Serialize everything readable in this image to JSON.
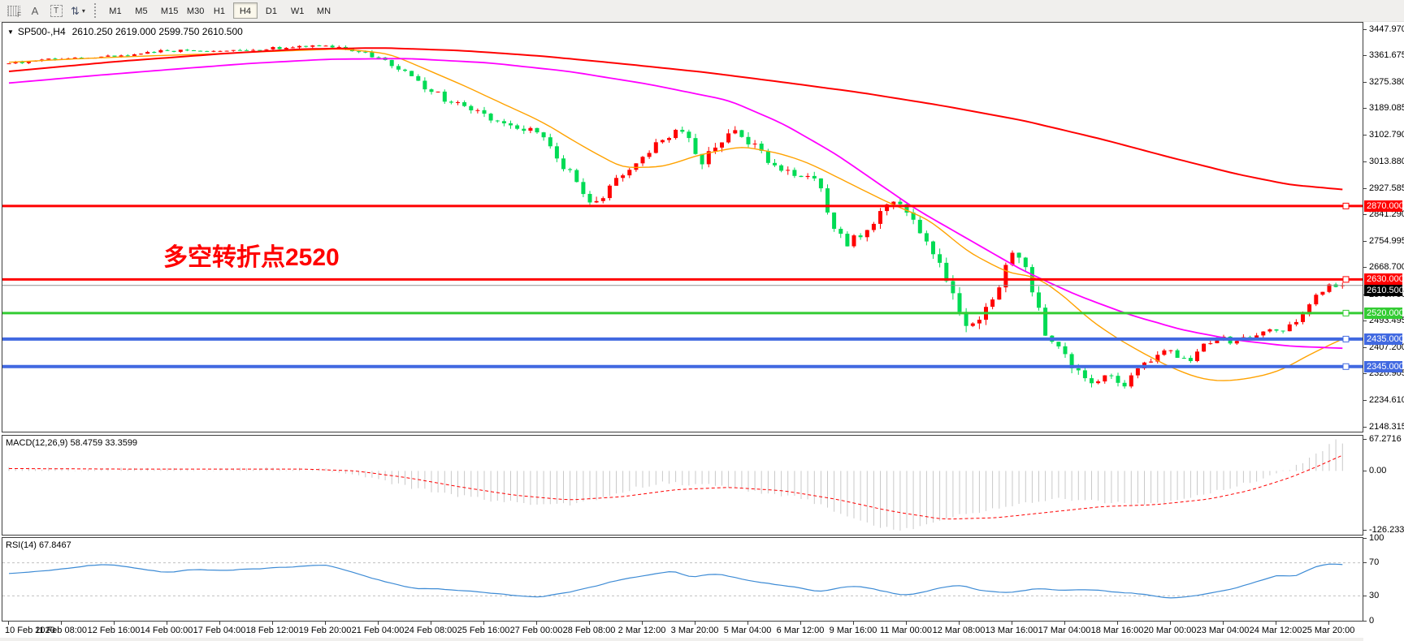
{
  "toolbar": {
    "icon_buttons": [
      {
        "name": "objects-palette",
        "glyph": "F"
      },
      {
        "name": "text-label-tool",
        "glyph": "A"
      },
      {
        "name": "text-box-tool",
        "glyph": "T"
      },
      {
        "name": "arrows-tool",
        "glyph": "⇅"
      }
    ],
    "dropdown_caret": "▾",
    "timeframes": [
      "M1",
      "M5",
      "M15",
      "M30",
      "H1",
      "H4",
      "D1",
      "W1",
      "MN"
    ],
    "active_timeframe": "H4"
  },
  "chart": {
    "title": {
      "menu_glyph": "▼",
      "symbol_period": "SP500-,H4",
      "ohlc": "2610.250 2619.000 2599.750 2610.500"
    },
    "annotation": {
      "text": "多空转折点2520",
      "color": "#ff0000"
    },
    "y_ticks": [
      "3447.970",
      "3361.675",
      "3275.380",
      "3189.085",
      "3102.790",
      "3013.880",
      "2927.585",
      "2841.290",
      "2754.995",
      "2668.700",
      "2579.790",
      "2493.495",
      "2407.200",
      "2320.905",
      "2234.610",
      "2148.315"
    ],
    "levels": [
      {
        "type": "hline",
        "price": 2870.0,
        "label": "2870.000",
        "color": "#ff0000",
        "width": 3
      },
      {
        "type": "hline",
        "price": 2630.0,
        "label": "2630.000",
        "color": "#ff0000",
        "width": 3
      },
      {
        "type": "bid",
        "price": 2610.5,
        "label": "2610.500",
        "color": "#000000",
        "line_color": "#909090",
        "width": 1
      },
      {
        "type": "hline",
        "price": 2520.0,
        "label": "2520.000",
        "color": "#33cc33",
        "width": 3
      },
      {
        "type": "hline",
        "price": 2435.0,
        "label": "2435.000",
        "color": "#4169e1",
        "width": 4
      },
      {
        "type": "hline",
        "price": 2345.0,
        "label": "2345.000",
        "color": "#4169e1",
        "width": 4
      }
    ],
    "colors": {
      "up": "#ff0000",
      "down": "#00db54",
      "ma_fast": "#ffa200",
      "ma_mid": "#ff00ff",
      "ma_slow": "#ff0000",
      "background": "#ffffff",
      "border": "#3f3f3f"
    }
  },
  "chart_data": {
    "type": "candlestick",
    "symbol": "SP500-",
    "timeframe": "H4",
    "ohlc_current": {
      "open": 2610.25,
      "high": 2619.0,
      "low": 2599.75,
      "close": 2610.5
    },
    "y_range": [
      2148.315,
      3447.97
    ],
    "n_bars": 203,
    "close_waypoints": [
      [
        0.0,
        3337,
        9
      ],
      [
        0.04,
        3352,
        8
      ],
      [
        0.079,
        3360,
        8
      ],
      [
        0.119,
        3378,
        8
      ],
      [
        0.158,
        3374,
        8
      ],
      [
        0.198,
        3386,
        8
      ],
      [
        0.238,
        3392,
        9
      ],
      [
        0.262,
        3378,
        12
      ],
      [
        0.286,
        3337,
        16
      ],
      [
        0.31,
        3262,
        24
      ],
      [
        0.33,
        3215,
        24
      ],
      [
        0.356,
        3172,
        24
      ],
      [
        0.376,
        3128,
        24
      ],
      [
        0.396,
        3116,
        24
      ],
      [
        0.42,
        2980,
        30
      ],
      [
        0.436,
        2878,
        34
      ],
      [
        0.45,
        2925,
        30
      ],
      [
        0.465,
        2988,
        28
      ],
      [
        0.478,
        3045,
        26
      ],
      [
        0.492,
        3090,
        26
      ],
      [
        0.506,
        3126,
        30
      ],
      [
        0.518,
        3010,
        34
      ],
      [
        0.532,
        3080,
        32
      ],
      [
        0.545,
        3124,
        32
      ],
      [
        0.56,
        3060,
        30
      ],
      [
        0.575,
        2998,
        30
      ],
      [
        0.59,
        2972,
        30
      ],
      [
        0.608,
        2940,
        30
      ],
      [
        0.616,
        2800,
        36
      ],
      [
        0.63,
        2748,
        36
      ],
      [
        0.644,
        2800,
        34
      ],
      [
        0.66,
        2880,
        34
      ],
      [
        0.673,
        2850,
        36
      ],
      [
        0.69,
        2741,
        38
      ],
      [
        0.702,
        2640,
        42
      ],
      [
        0.716,
        2490,
        44
      ],
      [
        0.728,
        2481,
        42
      ],
      [
        0.74,
        2590,
        42
      ],
      [
        0.752,
        2700,
        40
      ],
      [
        0.76,
        2711,
        38
      ],
      [
        0.77,
        2560,
        42
      ],
      [
        0.78,
        2430,
        40
      ],
      [
        0.79,
        2405,
        36
      ],
      [
        0.8,
        2330,
        32
      ],
      [
        0.812,
        2295,
        28
      ],
      [
        0.824,
        2310,
        26
      ],
      [
        0.836,
        2290,
        26
      ],
      [
        0.848,
        2335,
        26
      ],
      [
        0.86,
        2380,
        24
      ],
      [
        0.872,
        2400,
        24
      ],
      [
        0.884,
        2355,
        24
      ],
      [
        0.896,
        2420,
        22
      ],
      [
        0.908,
        2440,
        22
      ],
      [
        0.92,
        2425,
        20
      ],
      [
        0.932,
        2442,
        20
      ],
      [
        0.944,
        2458,
        20
      ],
      [
        0.956,
        2465,
        20
      ],
      [
        0.968,
        2490,
        20
      ],
      [
        0.978,
        2565,
        22
      ],
      [
        0.99,
        2608,
        16
      ],
      [
        1.0,
        2610.5,
        12
      ]
    ],
    "ma_series": [
      {
        "name": "ma-fast",
        "color_key": "ma_fast",
        "stroke": 1.4,
        "points": [
          [
            0,
            3340
          ],
          [
            0.05,
            3351
          ],
          [
            0.1,
            3360
          ],
          [
            0.15,
            3367
          ],
          [
            0.2,
            3376
          ],
          [
            0.25,
            3384
          ],
          [
            0.285,
            3368
          ],
          [
            0.31,
            3322
          ],
          [
            0.34,
            3266
          ],
          [
            0.37,
            3205
          ],
          [
            0.4,
            3145
          ],
          [
            0.43,
            3066
          ],
          [
            0.46,
            2995
          ],
          [
            0.49,
            2998
          ],
          [
            0.52,
            3040
          ],
          [
            0.55,
            3065
          ],
          [
            0.58,
            3040
          ],
          [
            0.6,
            3010
          ],
          [
            0.63,
            2945
          ],
          [
            0.66,
            2880
          ],
          [
            0.69,
            2825
          ],
          [
            0.72,
            2718
          ],
          [
            0.75,
            2650
          ],
          [
            0.77,
            2640
          ],
          [
            0.79,
            2580
          ],
          [
            0.81,
            2500
          ],
          [
            0.83,
            2440
          ],
          [
            0.85,
            2390
          ],
          [
            0.87,
            2345
          ],
          [
            0.89,
            2310
          ],
          [
            0.905,
            2298
          ],
          [
            0.92,
            2300
          ],
          [
            0.94,
            2315
          ],
          [
            0.955,
            2335
          ],
          [
            0.97,
            2372
          ],
          [
            0.985,
            2405
          ],
          [
            1,
            2435
          ]
        ]
      },
      {
        "name": "ma-mid",
        "color_key": "ma_mid",
        "stroke": 1.8,
        "points": [
          [
            0,
            3272
          ],
          [
            0.06,
            3295
          ],
          [
            0.12,
            3316
          ],
          [
            0.18,
            3336
          ],
          [
            0.24,
            3350
          ],
          [
            0.3,
            3352
          ],
          [
            0.36,
            3338
          ],
          [
            0.42,
            3310
          ],
          [
            0.48,
            3268
          ],
          [
            0.54,
            3215
          ],
          [
            0.58,
            3140
          ],
          [
            0.62,
            3040
          ],
          [
            0.66,
            2920
          ],
          [
            0.68,
            2860
          ],
          [
            0.72,
            2760
          ],
          [
            0.76,
            2660
          ],
          [
            0.8,
            2580
          ],
          [
            0.84,
            2515
          ],
          [
            0.88,
            2465
          ],
          [
            0.92,
            2432
          ],
          [
            0.96,
            2412
          ],
          [
            1,
            2405
          ]
        ]
      },
      {
        "name": "ma-slow",
        "color_key": "ma_slow",
        "stroke": 2,
        "points": [
          [
            0,
            3310
          ],
          [
            0.08,
            3342
          ],
          [
            0.16,
            3368
          ],
          [
            0.22,
            3383
          ],
          [
            0.28,
            3387
          ],
          [
            0.34,
            3378
          ],
          [
            0.4,
            3360
          ],
          [
            0.46,
            3335
          ],
          [
            0.52,
            3308
          ],
          [
            0.58,
            3275
          ],
          [
            0.64,
            3240
          ],
          [
            0.7,
            3198
          ],
          [
            0.76,
            3150
          ],
          [
            0.82,
            3088
          ],
          [
            0.87,
            3030
          ],
          [
            0.92,
            2975
          ],
          [
            0.96,
            2940
          ],
          [
            1,
            2924
          ]
        ]
      }
    ]
  },
  "macd": {
    "label": "MACD(12,26,9) 58.4759 33.3599",
    "values": {
      "main": 58.4759,
      "signal": 33.3599
    },
    "ticks": [
      {
        "label": "67.2716",
        "v": 67.2716
      },
      {
        "label": "0.00",
        "v": 0
      },
      {
        "label": "-126.233",
        "v": -126.233
      }
    ],
    "range": [
      -136,
      75
    ],
    "hist_color": "#c9c9c9",
    "signal_color": "#ff0000",
    "hist_points": [
      [
        0,
        6
      ],
      [
        0.05,
        4
      ],
      [
        0.1,
        3
      ],
      [
        0.15,
        3
      ],
      [
        0.2,
        5
      ],
      [
        0.24,
        2
      ],
      [
        0.27,
        -12
      ],
      [
        0.3,
        -35
      ],
      [
        0.33,
        -50
      ],
      [
        0.36,
        -62
      ],
      [
        0.39,
        -70
      ],
      [
        0.42,
        -72
      ],
      [
        0.45,
        -55
      ],
      [
        0.47,
        -35
      ],
      [
        0.49,
        -25
      ],
      [
        0.51,
        -28
      ],
      [
        0.53,
        -32
      ],
      [
        0.55,
        -40
      ],
      [
        0.57,
        -50
      ],
      [
        0.59,
        -55
      ],
      [
        0.61,
        -75
      ],
      [
        0.63,
        -100
      ],
      [
        0.655,
        -120
      ],
      [
        0.67,
        -126
      ],
      [
        0.69,
        -115
      ],
      [
        0.71,
        -95
      ],
      [
        0.73,
        -85
      ],
      [
        0.75,
        -75
      ],
      [
        0.77,
        -65
      ],
      [
        0.79,
        -60
      ],
      [
        0.81,
        -62
      ],
      [
        0.83,
        -68
      ],
      [
        0.85,
        -70
      ],
      [
        0.87,
        -65
      ],
      [
        0.89,
        -55
      ],
      [
        0.91,
        -40
      ],
      [
        0.93,
        -25
      ],
      [
        0.95,
        -8
      ],
      [
        0.965,
        10
      ],
      [
        0.98,
        35
      ],
      [
        0.99,
        55
      ],
      [
        0.995,
        67.2716
      ],
      [
        1,
        58.4759
      ]
    ],
    "signal_points": [
      [
        0,
        5
      ],
      [
        0.08,
        4
      ],
      [
        0.16,
        4
      ],
      [
        0.22,
        4
      ],
      [
        0.26,
        0
      ],
      [
        0.3,
        -15
      ],
      [
        0.34,
        -35
      ],
      [
        0.38,
        -52
      ],
      [
        0.42,
        -62
      ],
      [
        0.46,
        -55
      ],
      [
        0.5,
        -40
      ],
      [
        0.54,
        -35
      ],
      [
        0.58,
        -42
      ],
      [
        0.62,
        -60
      ],
      [
        0.66,
        -85
      ],
      [
        0.7,
        -103
      ],
      [
        0.74,
        -100
      ],
      [
        0.78,
        -88
      ],
      [
        0.82,
        -76
      ],
      [
        0.86,
        -72
      ],
      [
        0.9,
        -60
      ],
      [
        0.93,
        -42
      ],
      [
        0.96,
        -15
      ],
      [
        0.98,
        8
      ],
      [
        1,
        33.3599
      ]
    ]
  },
  "rsi": {
    "label": "RSI(14) 67.8467",
    "value": 67.8467,
    "ticks": [
      {
        "label": "100",
        "v": 100
      },
      {
        "label": "70",
        "v": 70
      },
      {
        "label": "30",
        "v": 30
      },
      {
        "label": "0",
        "v": 0
      }
    ],
    "levels": [
      70,
      30
    ],
    "color": "#3d8bd5",
    "points": [
      [
        0,
        57
      ],
      [
        0.02,
        60
      ],
      [
        0.04,
        63
      ],
      [
        0.06,
        66
      ],
      [
        0.08,
        68
      ],
      [
        0.1,
        62
      ],
      [
        0.12,
        58
      ],
      [
        0.14,
        62
      ],
      [
        0.16,
        60
      ],
      [
        0.18,
        63
      ],
      [
        0.2,
        64
      ],
      [
        0.22,
        66
      ],
      [
        0.24,
        67
      ],
      [
        0.26,
        58
      ],
      [
        0.28,
        48
      ],
      [
        0.3,
        40
      ],
      [
        0.32,
        38
      ],
      [
        0.34,
        37
      ],
      [
        0.36,
        33
      ],
      [
        0.38,
        30
      ],
      [
        0.4,
        28
      ],
      [
        0.42,
        35
      ],
      [
        0.44,
        42
      ],
      [
        0.46,
        50
      ],
      [
        0.48,
        55
      ],
      [
        0.5,
        60
      ],
      [
        0.51,
        52
      ],
      [
        0.53,
        58
      ],
      [
        0.55,
        50
      ],
      [
        0.57,
        45
      ],
      [
        0.59,
        40
      ],
      [
        0.61,
        35
      ],
      [
        0.63,
        43
      ],
      [
        0.65,
        38
      ],
      [
        0.67,
        30
      ],
      [
        0.69,
        36
      ],
      [
        0.71,
        44
      ],
      [
        0.73,
        36
      ],
      [
        0.75,
        33
      ],
      [
        0.77,
        40
      ],
      [
        0.79,
        36
      ],
      [
        0.81,
        38
      ],
      [
        0.83,
        35
      ],
      [
        0.85,
        32
      ],
      [
        0.87,
        28
      ],
      [
        0.89,
        30
      ],
      [
        0.91,
        36
      ],
      [
        0.93,
        45
      ],
      [
        0.945,
        52
      ],
      [
        0.955,
        56
      ],
      [
        0.963,
        51
      ],
      [
        0.972,
        60
      ],
      [
        0.98,
        66
      ],
      [
        0.99,
        68
      ],
      [
        1,
        67.8467
      ]
    ]
  },
  "x_axis": {
    "labels": [
      "10 Feb 2020",
      "11 Feb 08:00",
      "12 Feb 16:00",
      "14 Feb 00:00",
      "17 Feb 04:00",
      "18 Feb 12:00",
      "19 Feb 20:00",
      "21 Feb 04:00",
      "24 Feb 08:00",
      "25 Feb 16:00",
      "27 Feb 00:00",
      "28 Feb 08:00",
      "2 Mar 12:00",
      "3 Mar 20:00",
      "5 Mar 04:00",
      "6 Mar 12:00",
      "9 Mar 16:00",
      "11 Mar 00:00",
      "12 Mar 08:00",
      "13 Mar 16:00",
      "17 Mar 04:00",
      "18 Mar 16:00",
      "20 Mar 00:00",
      "23 Mar 04:00",
      "24 Mar 12:00",
      "25 Mar 20:00"
    ]
  }
}
